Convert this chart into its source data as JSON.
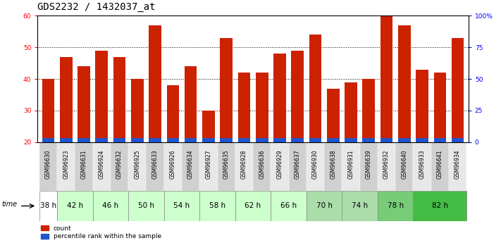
{
  "title": "GDS2232 / 1432037_at",
  "samples": [
    "GSM96630",
    "GSM96923",
    "GSM96631",
    "GSM96924",
    "GSM96632",
    "GSM96925",
    "GSM96633",
    "GSM96926",
    "GSM96634",
    "GSM96927",
    "GSM96635",
    "GSM96928",
    "GSM96636",
    "GSM96929",
    "GSM96637",
    "GSM96930",
    "GSM96638",
    "GSM96931",
    "GSM96639",
    "GSM96932",
    "GSM96640",
    "GSM96933",
    "GSM96641",
    "GSM96934"
  ],
  "count_values": [
    40,
    47,
    44,
    49,
    47,
    40,
    57,
    38,
    44,
    30,
    53,
    42,
    42,
    48,
    49,
    54,
    37,
    39,
    40,
    60,
    57,
    43,
    42,
    53
  ],
  "percentile_values": [
    22,
    22,
    22,
    22,
    22,
    22,
    24,
    21,
    23,
    21,
    23,
    22,
    22,
    22,
    22,
    22,
    21,
    21,
    24,
    24,
    22,
    25,
    22,
    23
  ],
  "time_groups": [
    {
      "label": "38 h",
      "indices": [
        0
      ],
      "color": "#ffffff"
    },
    {
      "label": "42 h",
      "indices": [
        1,
        2
      ],
      "color": "#ccffcc"
    },
    {
      "label": "46 h",
      "indices": [
        3,
        4
      ],
      "color": "#ccffcc"
    },
    {
      "label": "50 h",
      "indices": [
        5,
        6
      ],
      "color": "#ccffcc"
    },
    {
      "label": "54 h",
      "indices": [
        7,
        8
      ],
      "color": "#ccffcc"
    },
    {
      "label": "58 h",
      "indices": [
        9,
        10
      ],
      "color": "#ccffcc"
    },
    {
      "label": "62 h",
      "indices": [
        11,
        12
      ],
      "color": "#ccffcc"
    },
    {
      "label": "66 h",
      "indices": [
        13,
        14
      ],
      "color": "#ccffcc"
    },
    {
      "label": "70 h",
      "indices": [
        15,
        16
      ],
      "color": "#aaddaa"
    },
    {
      "label": "74 h",
      "indices": [
        17,
        18
      ],
      "color": "#aaddaa"
    },
    {
      "label": "78 h",
      "indices": [
        19,
        20
      ],
      "color": "#77cc77"
    },
    {
      "label": "82 h",
      "indices": [
        21,
        22,
        23
      ],
      "color": "#44bb44"
    }
  ],
  "sample_bg_colors": [
    "#d0d0d0",
    "#e8e8e8",
    "#d0d0d0",
    "#e8e8e8",
    "#d0d0d0",
    "#e8e8e8",
    "#d0d0d0",
    "#e8e8e8",
    "#d0d0d0",
    "#e8e8e8",
    "#d0d0d0",
    "#e8e8e8",
    "#d0d0d0",
    "#e8e8e8",
    "#d0d0d0",
    "#e8e8e8",
    "#d0d0d0",
    "#e8e8e8",
    "#d0d0d0",
    "#e8e8e8",
    "#d0d0d0",
    "#e8e8e8",
    "#d0d0d0",
    "#e8e8e8"
  ],
  "bar_color": "#cc2200",
  "percentile_color": "#2255cc",
  "ylim_left": [
    20,
    60
  ],
  "ylim_right": [
    0,
    100
  ],
  "yticks_left": [
    20,
    30,
    40,
    50,
    60
  ],
  "yticks_right": [
    0,
    25,
    50,
    75,
    100
  ],
  "yticklabels_right": [
    "0",
    "25",
    "50",
    "75",
    "100%"
  ],
  "bar_width": 0.7,
  "title_fontsize": 10,
  "tick_fontsize": 6.5,
  "label_fontsize": 7.5
}
